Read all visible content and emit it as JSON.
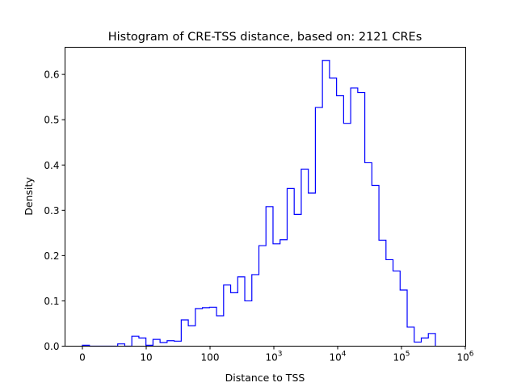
{
  "chart_data": {
    "type": "histogram",
    "title": "Histogram of CRE-TSS distance, based on: 2121 CREs",
    "xlabel": "Distance to TSS",
    "ylabel": "Density",
    "x_scale": "symlog",
    "x_linthresh": 10,
    "xlim": [
      0,
      1000000
    ],
    "ylim": [
      0,
      0.66
    ],
    "bin_range": [
      0,
      340000
    ],
    "n_bins": 50,
    "values": [
      0.002,
      0,
      0,
      0,
      0,
      0.005,
      0,
      0.022,
      0.018,
      0.002,
      0.015,
      0.008,
      0.012,
      0.011,
      0.058,
      0.045,
      0.083,
      0.085,
      0.086,
      0.067,
      0.135,
      0.118,
      0.153,
      0.1,
      0.158,
      0.222,
      0.308,
      0.226,
      0.235,
      0.348,
      0.291,
      0.391,
      0.338,
      0.527,
      0.631,
      0.592,
      0.553,
      0.492,
      0.57,
      0.56,
      0.405,
      0.355,
      0.234,
      0.191,
      0.166,
      0.124,
      0.042,
      0.009,
      0.018,
      0.028
    ],
    "xticks": [
      {
        "value": 0,
        "label": "0",
        "exp": ""
      },
      {
        "value": 10,
        "label": "10",
        "exp": ""
      },
      {
        "value": 100,
        "label": "100",
        "exp": ""
      },
      {
        "value": 1000,
        "label": "10",
        "exp": "3"
      },
      {
        "value": 10000,
        "label": "10",
        "exp": "4"
      },
      {
        "value": 100000,
        "label": "10",
        "exp": "5"
      },
      {
        "value": 1000000,
        "label": "10",
        "exp": "6"
      }
    ],
    "yticks": [
      {
        "value": 0,
        "label": "0.0"
      },
      {
        "value": 0.1,
        "label": "0.1"
      },
      {
        "value": 0.2,
        "label": "0.2"
      },
      {
        "value": 0.3,
        "label": "0.3"
      },
      {
        "value": 0.4,
        "label": "0.4"
      },
      {
        "value": 0.5,
        "label": "0.5"
      },
      {
        "value": 0.6,
        "label": "0.6"
      }
    ],
    "line_color": "#0000ff",
    "grid": false
  }
}
